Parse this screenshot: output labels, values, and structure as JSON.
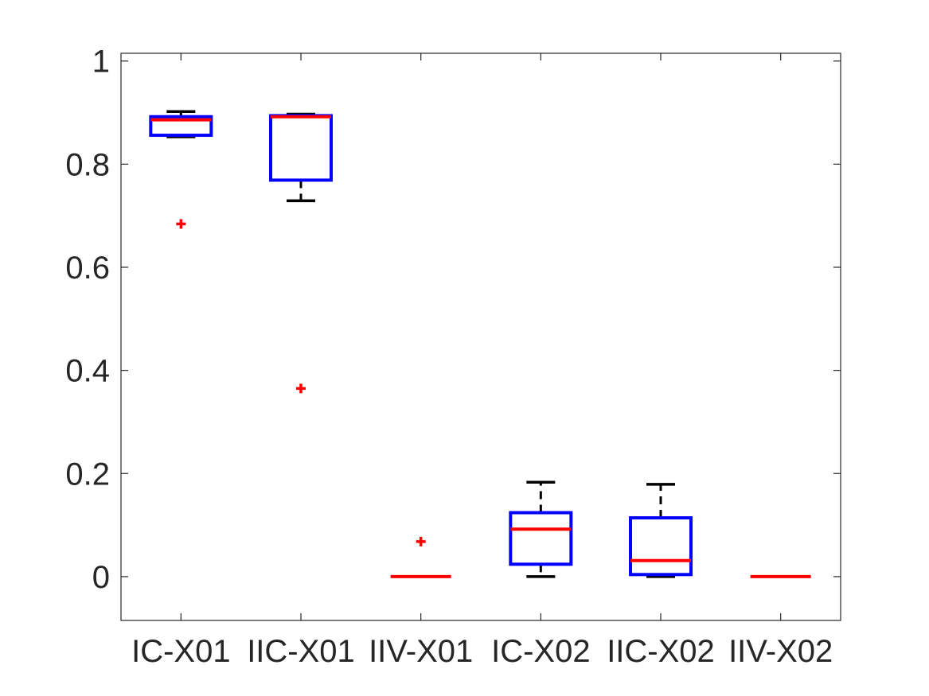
{
  "chart_data": {
    "type": "box",
    "categories": [
      "IC-X01",
      "IIC-X01",
      "IIV-X01",
      "IC-X02",
      "IIC-X02",
      "IIV-X02"
    ],
    "boxes": [
      {
        "whisker_low": 0.853,
        "q1": 0.856,
        "median": 0.886,
        "q3": 0.892,
        "whisker_high": 0.902,
        "outliers": [
          0.684
        ]
      },
      {
        "whisker_low": 0.729,
        "q1": 0.769,
        "median": 0.892,
        "q3": 0.894,
        "whisker_high": 0.897,
        "outliers": [
          0.365
        ]
      },
      {
        "whisker_low": 0.0,
        "q1": 0.0,
        "median": 0.0,
        "q3": 0.0,
        "whisker_high": 0.0,
        "outliers": [
          0.068
        ]
      },
      {
        "whisker_low": 0.0,
        "q1": 0.024,
        "median": 0.092,
        "q3": 0.124,
        "whisker_high": 0.183,
        "outliers": []
      },
      {
        "whisker_low": 0.0,
        "q1": 0.004,
        "median": 0.031,
        "q3": 0.114,
        "whisker_high": 0.179,
        "outliers": []
      },
      {
        "whisker_low": 0.0,
        "q1": 0.0,
        "median": 0.0,
        "q3": 0.0,
        "whisker_high": 0.0,
        "outliers": []
      }
    ],
    "yticks": [
      0,
      0.2,
      0.4,
      0.6,
      0.8,
      1
    ],
    "ytick_labels": [
      "0",
      "0.2",
      "0.4",
      "0.6",
      "0.8",
      "1"
    ],
    "ylim": [
      -0.085,
      1.015
    ],
    "xlim": [
      0.5,
      6.5
    ],
    "title": "",
    "xlabel": "",
    "ylabel": "",
    "grid": false,
    "colors": {
      "box": "#0000ff",
      "median": "#ff0000",
      "whisker": "#000000",
      "outlier": "#ff0000",
      "axes": "#262626"
    }
  }
}
